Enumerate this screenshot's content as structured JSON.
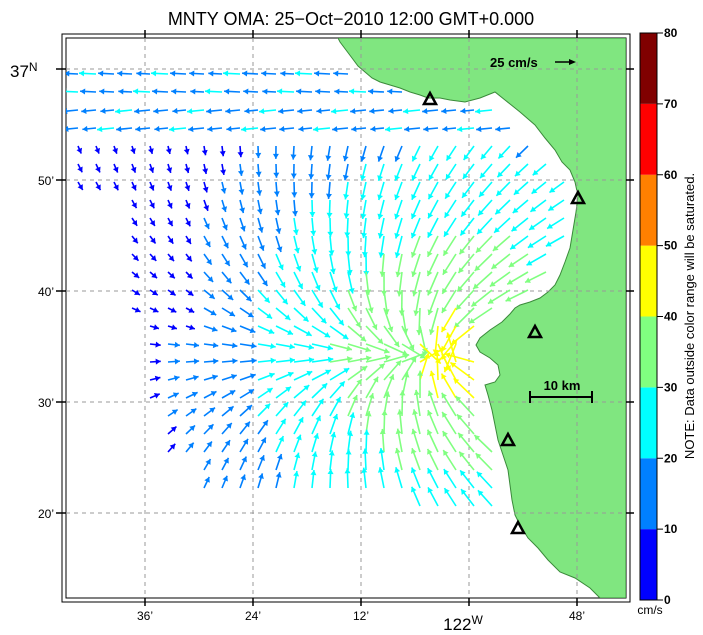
{
  "title": "MNTY OMA: 25−Oct−2010 12:00 GMT+0.000",
  "lat_labels": {
    "deg": "37",
    "deg_suffix": "N",
    "m50": "50’",
    "m40": "40’",
    "m30": "30’",
    "m20": "20’"
  },
  "lon_labels": {
    "m36": "36’",
    "m24": "24’",
    "m12": "12’",
    "deg": "122",
    "deg_suffix": "W",
    "m48": "48’"
  },
  "scale_arrow_label": "25 cm/s",
  "scale_bar_label": "10 km",
  "colorbar": {
    "ticks": [
      "0",
      "10",
      "20",
      "30",
      "40",
      "50",
      "60",
      "70",
      "80"
    ],
    "unit": "cm/s",
    "note": "NOTE: Data outside color range will be saturated.",
    "colors": [
      "#0000ff",
      "#0080ff",
      "#00ffff",
      "#80ff80",
      "#ffff00",
      "#ff8000",
      "#ff0000",
      "#800000"
    ]
  },
  "colors": {
    "land": "#80e680",
    "grid": "#999999"
  }
}
